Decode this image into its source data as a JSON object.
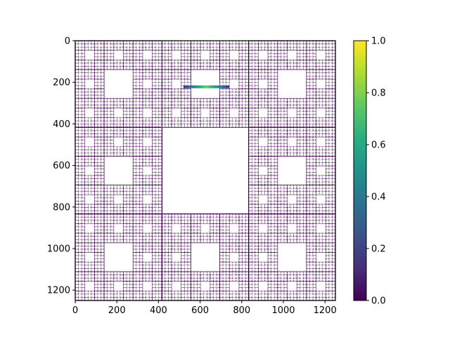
{
  "chart_data": {
    "type": "heatmap",
    "title": "",
    "xlabel": "",
    "ylabel": "",
    "description": "Carpet-like fractal mask rendered with the viridis colormap; mostly value 0 (dark purple) lines, with a brighter band near the top inner edge.",
    "xlim": [
      0,
      1250
    ],
    "ylim": [
      1250,
      0
    ],
    "x_ticks": [
      0,
      200,
      400,
      600,
      800,
      1000,
      1200
    ],
    "y_ticks": [
      0,
      200,
      400,
      600,
      800,
      1000,
      1200
    ],
    "x_tick_labels": [
      "0",
      "200",
      "400",
      "600",
      "800",
      "1000",
      "1200"
    ],
    "y_tick_labels": [
      "0",
      "200",
      "400",
      "600",
      "800",
      "1000",
      "1200"
    ],
    "colormap": "viridis",
    "colorbar": {
      "range": [
        0,
        1
      ],
      "ticks": [
        0,
        0.2,
        0.4,
        0.6,
        0.8,
        1.0
      ],
      "tick_labels": [
        "0.0",
        "0.2",
        "0.4",
        "0.6",
        "0.8",
        "1.0"
      ]
    },
    "background_value": 0,
    "highlight": {
      "x_range": [
        520,
        740
      ],
      "y_range": [
        200,
        250
      ],
      "peak_value": 0.75
    }
  }
}
